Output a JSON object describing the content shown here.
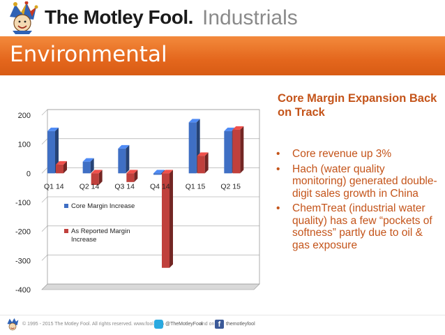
{
  "header": {
    "brand": "The Motley Fool.",
    "division": "Industrials"
  },
  "banner": {
    "title": "Environmental"
  },
  "side": {
    "heading": "Core Margin Expansion Back on Track",
    "bullets": [
      "Core revenue up 3%",
      "Hach (water quality monitoring) generated double-digit sales growth in China",
      "ChemTreat (industrial water quality) has a few “pockets of softness” partly due to oil & gas exposure"
    ],
    "bullet_glyph": "•"
  },
  "footer": {
    "copyright": "© 1995 - 2015 The Motley Fool. All rights reserved. www.fool.com",
    "twitter": "@TheMotleyFool",
    "and_on": "and on",
    "facebook": "themotleyfool"
  },
  "colors": {
    "accent": "#e4671d",
    "text_accent": "#c4541a",
    "series_core": "#3f6fc4",
    "series_reported": "#c0403c"
  },
  "chart_data": {
    "type": "bar",
    "categories": [
      "Q1 14",
      "Q2 14",
      "Q3 14",
      "Q4 14",
      "Q1 15",
      "Q2 15"
    ],
    "series": [
      {
        "name": "Core Margin Increase",
        "values": [
          145,
          40,
          85,
          -5,
          175,
          145
        ],
        "color": "#3f6fc4"
      },
      {
        "name": "As Reported Margin Increase",
        "values": [
          30,
          -40,
          -30,
          -325,
          60,
          150
        ],
        "color": "#c0403c"
      }
    ],
    "ylim": [
      -400,
      200
    ],
    "yticks": [
      200,
      100,
      0,
      -100,
      -200,
      -300,
      -400
    ],
    "grid": true,
    "legend_position": "inside-left"
  }
}
